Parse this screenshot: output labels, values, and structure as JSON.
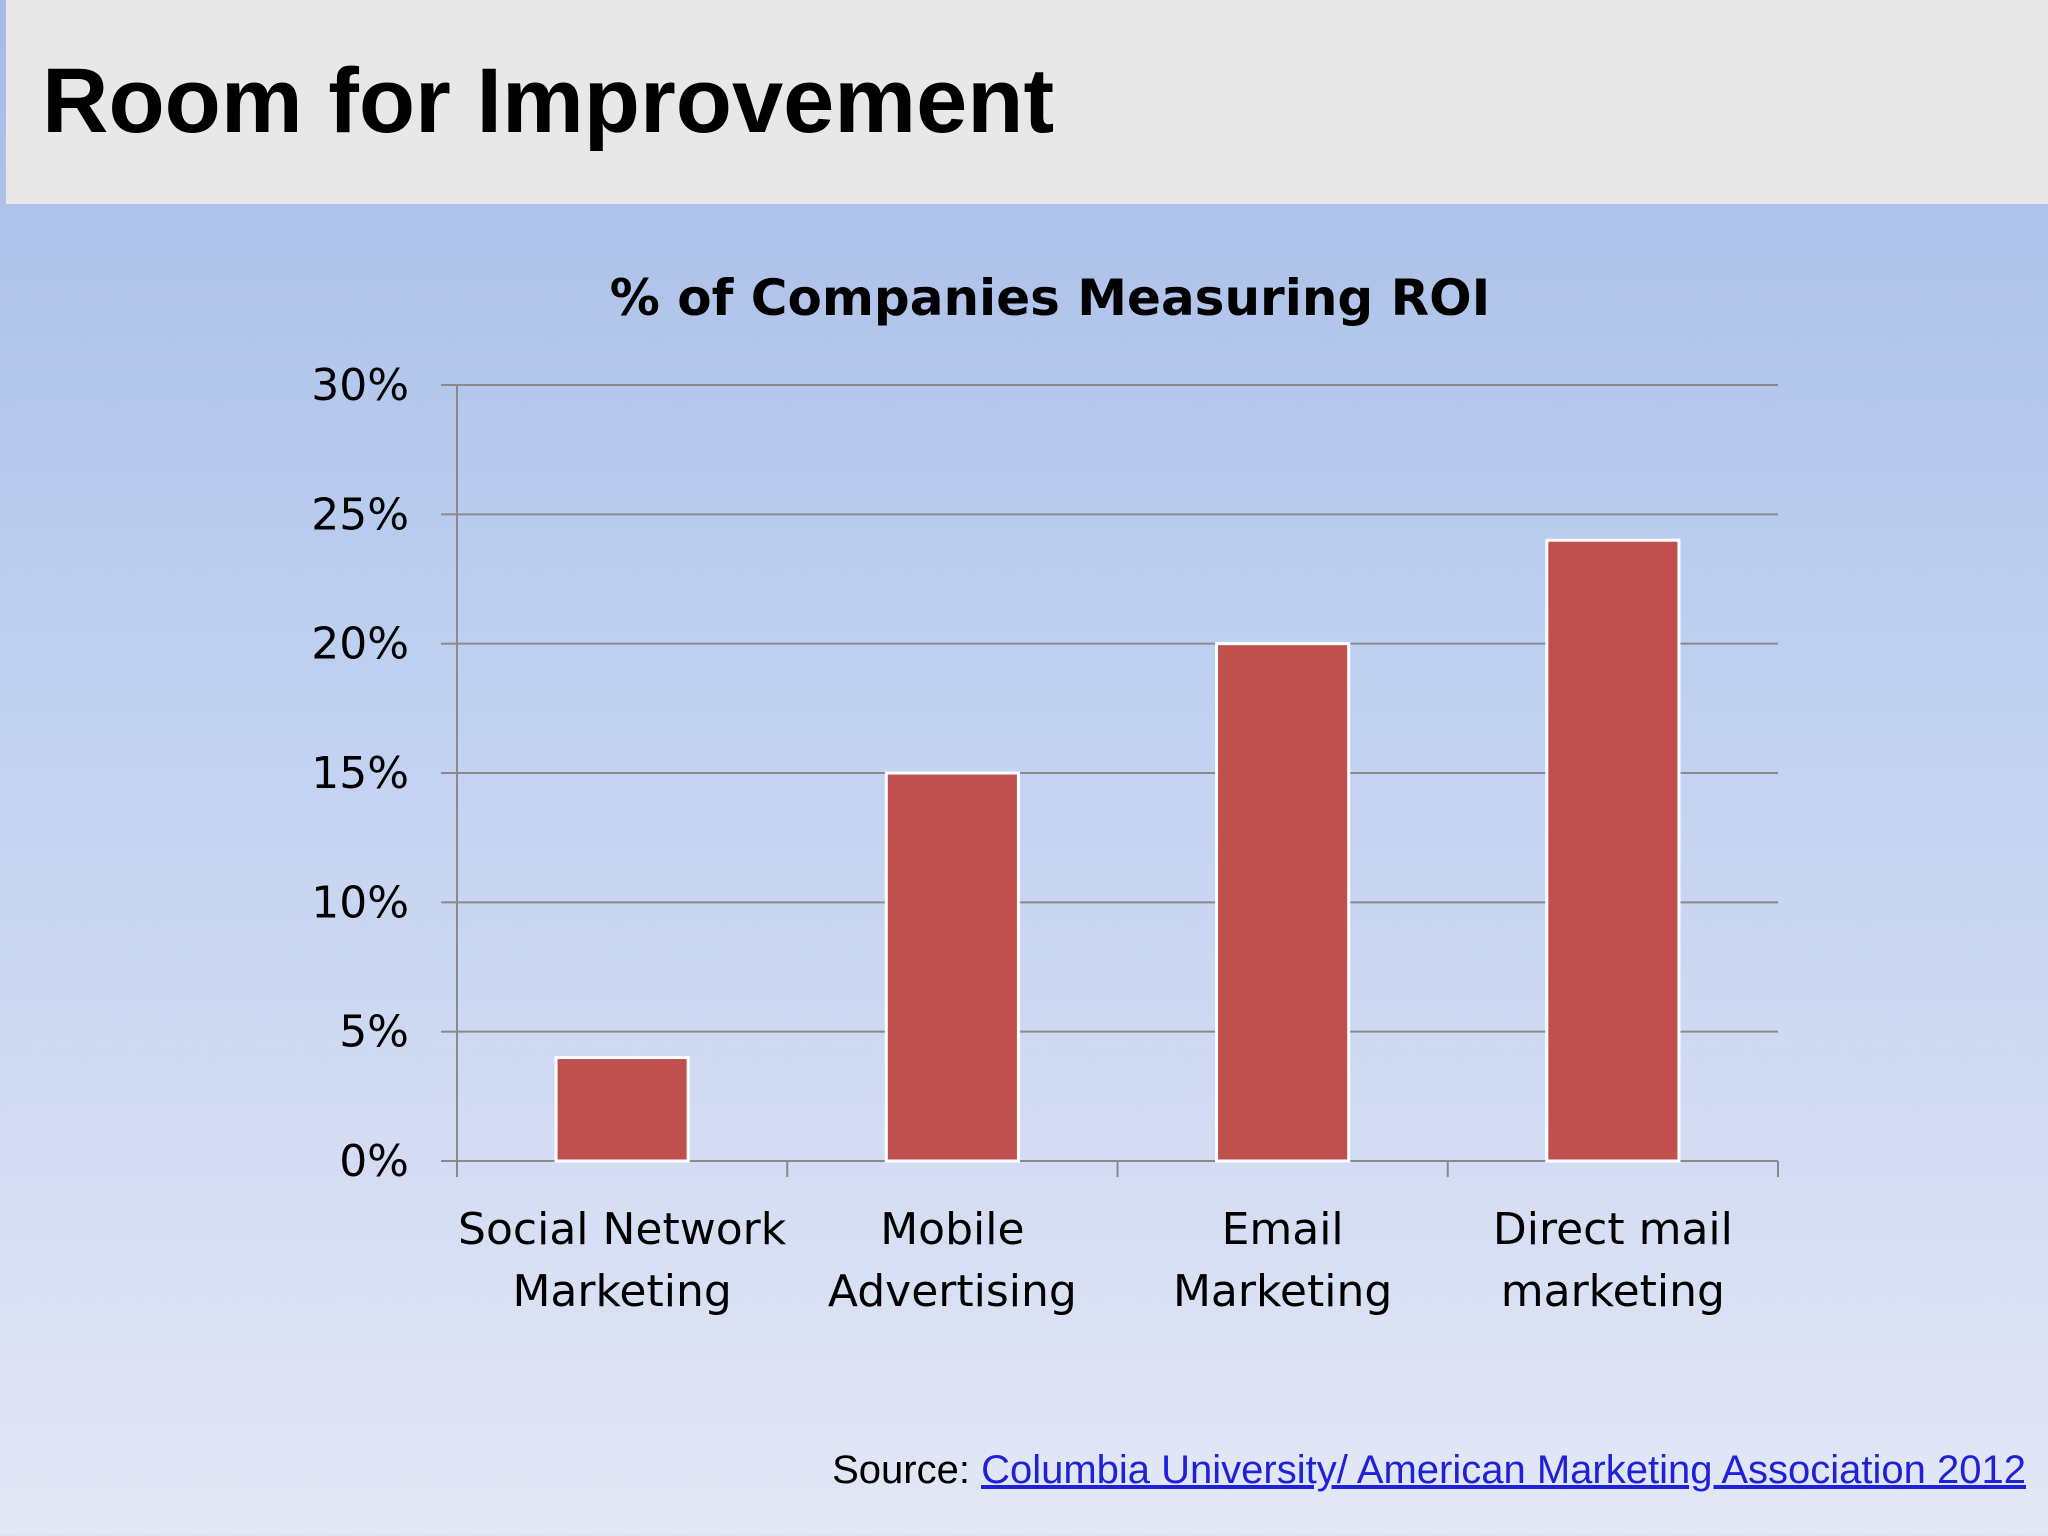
{
  "slide": {
    "title": "Room for Improvement"
  },
  "chart_data": {
    "type": "bar",
    "title": "% of Companies Measuring ROI",
    "categories": [
      [
        "Social Network",
        "Marketing"
      ],
      [
        "Mobile",
        "Advertising"
      ],
      [
        "Email",
        "Marketing"
      ],
      [
        "Direct mail",
        "marketing"
      ]
    ],
    "values": [
      4,
      15,
      20,
      24
    ],
    "ylim": [
      0,
      30
    ],
    "yticks": [
      0,
      5,
      10,
      15,
      20,
      25,
      30
    ],
    "ytick_labels": [
      "0%",
      "5%",
      "10%",
      "15%",
      "20%",
      "25%",
      "30%"
    ],
    "xlabel": "",
    "ylabel": "",
    "grid": true,
    "legend": "none",
    "colors": {
      "bar": "#c0504d",
      "grid": "#8a8a8a"
    }
  },
  "source": {
    "label": "Source:",
    "link_text": "Columbia University/ American Marketing Association 2012"
  }
}
